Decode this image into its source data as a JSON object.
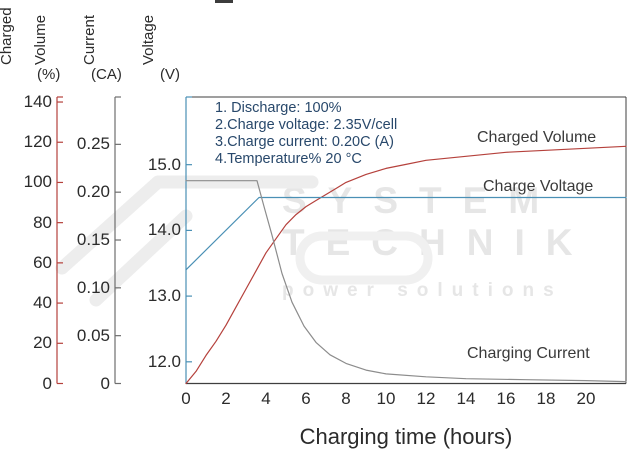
{
  "watermark": {
    "line1": "SYSTEM",
    "line2": "TECHNIK",
    "line3": "power solutions"
  },
  "chart_data": {
    "type": "line",
    "title": "",
    "xlabel": "Charging time (hours)",
    "grid": false,
    "legend_position": "inline-labels",
    "x_range": [
      0,
      22
    ],
    "x_tick_values": [
      0,
      2,
      4,
      6,
      8,
      10,
      12,
      14,
      16,
      18,
      20
    ],
    "x_tick_labels": [
      "0",
      "2",
      "4",
      "6",
      "8",
      "10",
      "12",
      "14",
      "16",
      "18",
      "20"
    ],
    "annotations": [
      "1. Discharge: 100%",
      "2.Charge voltage: 2.35V/cell",
      "3.Charge current: 0.20C (A)",
      "4.Temperature% 20 °C"
    ],
    "axes": [
      {
        "id": "charged",
        "words": [
          "Charged",
          "Volume"
        ],
        "unit": "(%)",
        "color": "#b5413c",
        "tick_values": [
          0,
          20,
          40,
          60,
          80,
          100,
          120,
          140
        ],
        "tick_labels": [
          "0",
          "20",
          "40",
          "60",
          "80",
          "100",
          "120",
          "140"
        ],
        "range": [
          0,
          142.5
        ]
      },
      {
        "id": "current",
        "words": [
          "Current"
        ],
        "unit": "(CA)",
        "color": "#6e6e6e",
        "tick_values": [
          0,
          0.05,
          0.1,
          0.15,
          0.2,
          0.25
        ],
        "tick_labels": [
          "0",
          "0.05",
          "0.10",
          "0.15",
          "0.20",
          "0.25"
        ],
        "range": [
          0,
          0.2995
        ]
      },
      {
        "id": "voltage",
        "words": [
          "Voltage"
        ],
        "unit": "(V)",
        "color": "#4a90b5",
        "tick_values": [
          12,
          13,
          14,
          15
        ],
        "tick_labels": [
          "12.0",
          "13.0",
          "14.0",
          "15.0"
        ],
        "range": [
          11.67,
          16.03
        ]
      }
    ],
    "series": [
      {
        "name": "Charged Volume",
        "axis": "charged",
        "color": "#b5413c",
        "points": [
          [
            0,
            0
          ],
          [
            0.5,
            6
          ],
          [
            1,
            14
          ],
          [
            1.5,
            21
          ],
          [
            2,
            29
          ],
          [
            2.5,
            38
          ],
          [
            3,
            47
          ],
          [
            3.5,
            56
          ],
          [
            4,
            65
          ],
          [
            4.5,
            72
          ],
          [
            5,
            79
          ],
          [
            5.5,
            84
          ],
          [
            6,
            88
          ],
          [
            6.5,
            91
          ],
          [
            7,
            94
          ],
          [
            7.5,
            97
          ],
          [
            8,
            100
          ],
          [
            9,
            104
          ],
          [
            10,
            107
          ],
          [
            11,
            109
          ],
          [
            12,
            111
          ],
          [
            14,
            113
          ],
          [
            16,
            115
          ],
          [
            18,
            116
          ],
          [
            20,
            117
          ],
          [
            22,
            118
          ]
        ]
      },
      {
        "name": "Charge Voltage",
        "axis": "voltage",
        "color": "#4a90b5",
        "points": [
          [
            0,
            13.4
          ],
          [
            3.65,
            14.5
          ],
          [
            22,
            14.5
          ]
        ]
      },
      {
        "name": "Charging Current",
        "axis": "current",
        "color": "#8c8c8c",
        "points": [
          [
            0,
            0.212
          ],
          [
            3.55,
            0.212
          ],
          [
            3.9,
            0.185
          ],
          [
            4.3,
            0.155
          ],
          [
            4.8,
            0.115
          ],
          [
            5.3,
            0.085
          ],
          [
            5.9,
            0.06
          ],
          [
            6.5,
            0.043
          ],
          [
            7.2,
            0.03
          ],
          [
            8,
            0.021
          ],
          [
            9,
            0.014
          ],
          [
            10,
            0.01
          ],
          [
            12,
            0.007
          ],
          [
            14,
            0.005
          ],
          [
            17,
            0.004
          ],
          [
            20,
            0.003
          ],
          [
            22,
            0.002
          ]
        ]
      }
    ]
  }
}
